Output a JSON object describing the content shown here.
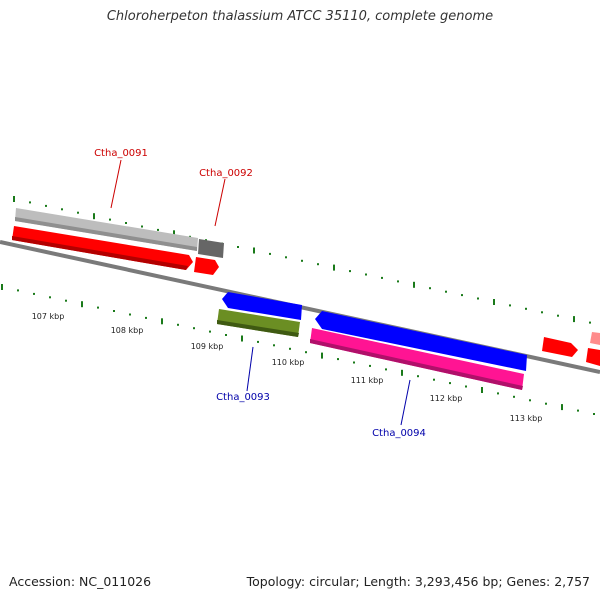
{
  "title": "Chloroherpeton thalassium ATCC 35110, complete genome",
  "footer": {
    "accession": "Accession: NC_011026",
    "summary": "Topology: circular; Length: 3,293,456 bp; Genes: 2,757"
  },
  "gene_labels": {
    "ctha_0091": "Ctha_0091",
    "ctha_0092": "Ctha_0092",
    "ctha_0093": "Ctha_0093",
    "ctha_0094": "Ctha_0094"
  },
  "kbp_labels": [
    "107 kbp",
    "108 kbp",
    "109 kbp",
    "110 kbp",
    "111 kbp",
    "112 kbp",
    "113 kbp"
  ],
  "colors": {
    "forward_label": "#cc0000",
    "reverse_label": "#0000aa",
    "backbone": "#7a7a7a",
    "tick": "#1a7a1a",
    "cds_red": "#ff0000",
    "cds_blue": "#0000ff",
    "cds_magenta": "#ff1493",
    "cds_olive": "#6b8e23",
    "gene_gray_light": "#bbbbbb",
    "gene_gray_dark": "#666666",
    "cds_pink": "#ff8c8c"
  }
}
